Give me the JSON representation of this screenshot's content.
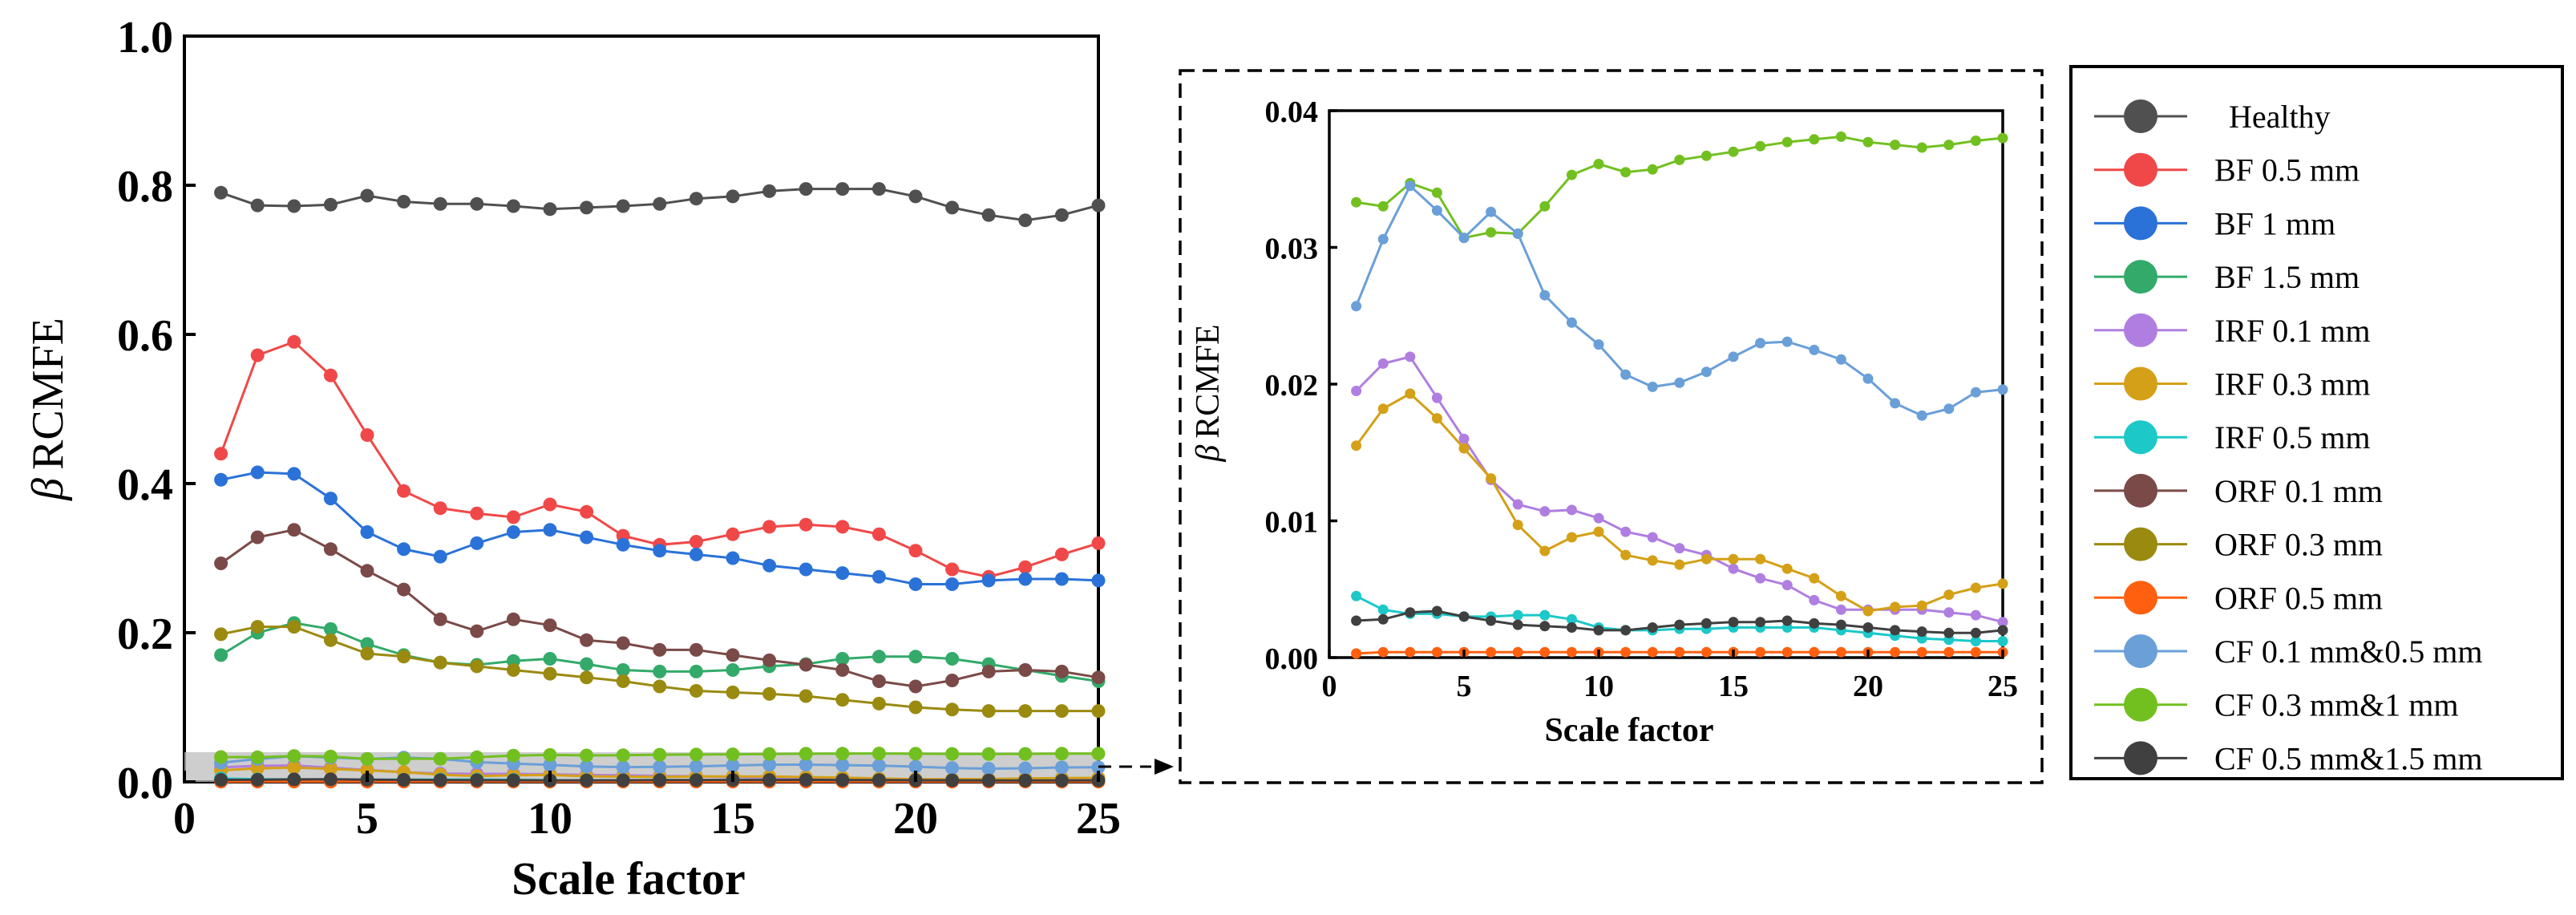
{
  "chart_data": [
    {
      "id": "main",
      "type": "line",
      "title": "",
      "xlabel": "Scale factor",
      "ylabel": "β RCMFE",
      "ylabel_symbol": "β",
      "ylabel_text": "RCMFE",
      "xlim": [
        0,
        25
      ],
      "ylim": [
        0,
        1.0
      ],
      "xticks": [
        "0",
        "5",
        "10",
        "15",
        "20",
        "25"
      ],
      "yticks": [
        "0.0",
        "0.2",
        "0.4",
        "0.6",
        "0.8",
        "1.0"
      ],
      "grid": false,
      "x": [
        1,
        2,
        3,
        4,
        5,
        6,
        7,
        8,
        9,
        10,
        11,
        12,
        13,
        14,
        15,
        16,
        17,
        18,
        19,
        20,
        21,
        22,
        23,
        24,
        25
      ],
      "series": [
        {
          "name": "Healthy",
          "color": "#505050",
          "values": [
            0.79,
            0.773,
            0.772,
            0.774,
            0.786,
            0.778,
            0.775,
            0.775,
            0.772,
            0.768,
            0.77,
            0.772,
            0.775,
            0.782,
            0.785,
            0.792,
            0.795,
            0.795,
            0.795,
            0.785,
            0.77,
            0.76,
            0.753,
            0.76,
            0.773
          ]
        },
        {
          "name": "BF 0.5 mm",
          "color": "#f04848",
          "values": [
            0.44,
            0.572,
            0.59,
            0.545,
            0.465,
            0.39,
            0.367,
            0.36,
            0.355,
            0.372,
            0.362,
            0.33,
            0.318,
            0.322,
            0.332,
            0.342,
            0.345,
            0.342,
            0.332,
            0.31,
            0.285,
            0.275,
            0.288,
            0.305,
            0.32
          ]
        },
        {
          "name": "BF 1 mm",
          "color": "#2a72d8",
          "values": [
            0.405,
            0.415,
            0.413,
            0.38,
            0.335,
            0.312,
            0.302,
            0.32,
            0.335,
            0.338,
            0.328,
            0.318,
            0.31,
            0.305,
            0.3,
            0.29,
            0.285,
            0.28,
            0.275,
            0.265,
            0.265,
            0.27,
            0.272,
            0.272,
            0.27
          ]
        },
        {
          "name": "BF 1.5 mm",
          "color": "#33aa6a",
          "values": [
            0.17,
            0.2,
            0.213,
            0.205,
            0.185,
            0.17,
            0.16,
            0.157,
            0.162,
            0.165,
            0.158,
            0.15,
            0.148,
            0.148,
            0.15,
            0.155,
            0.158,
            0.165,
            0.168,
            0.168,
            0.165,
            0.158,
            0.15,
            0.142,
            0.135
          ]
        },
        {
          "name": "IRF 0.1 mm",
          "color": "#b07ee0",
          "values": [
            0.0195,
            0.0215,
            0.022,
            0.019,
            0.016,
            0.013,
            0.0112,
            0.0107,
            0.0108,
            0.0102,
            0.0092,
            0.0088,
            0.008,
            0.0075,
            0.0065,
            0.0058,
            0.0053,
            0.0042,
            0.0035,
            0.0035,
            0.0035,
            0.0035,
            0.0033,
            0.0031,
            0.0026
          ]
        },
        {
          "name": "IRF 0.3 mm",
          "color": "#d4a017",
          "values": [
            0.0155,
            0.0182,
            0.0193,
            0.0175,
            0.0153,
            0.0131,
            0.0097,
            0.0078,
            0.0088,
            0.0092,
            0.0075,
            0.0071,
            0.0068,
            0.0072,
            0.0072,
            0.0072,
            0.0065,
            0.0058,
            0.0045,
            0.0034,
            0.0037,
            0.0038,
            0.0046,
            0.0051,
            0.0054
          ]
        },
        {
          "name": "IRF 0.5 mm",
          "color": "#1cc8c8",
          "values": [
            0.0045,
            0.0035,
            0.0032,
            0.0032,
            0.003,
            0.003,
            0.0031,
            0.0031,
            0.0028,
            0.0022,
            0.002,
            0.002,
            0.0021,
            0.0021,
            0.0022,
            0.0022,
            0.0022,
            0.0022,
            0.002,
            0.0018,
            0.0016,
            0.0014,
            0.0013,
            0.0012,
            0.0012
          ]
        },
        {
          "name": "ORF 0.1 mm",
          "color": "#7a4a48",
          "values": [
            0.293,
            0.328,
            0.338,
            0.312,
            0.283,
            0.258,
            0.218,
            0.202,
            0.218,
            0.21,
            0.19,
            0.186,
            0.177,
            0.177,
            0.17,
            0.163,
            0.157,
            0.15,
            0.135,
            0.128,
            0.136,
            0.148,
            0.15,
            0.148,
            0.14
          ]
        },
        {
          "name": "ORF 0.3 mm",
          "color": "#9a8a10",
          "values": [
            0.198,
            0.208,
            0.208,
            0.19,
            0.172,
            0.168,
            0.16,
            0.155,
            0.15,
            0.145,
            0.14,
            0.135,
            0.128,
            0.122,
            0.12,
            0.118,
            0.115,
            0.11,
            0.105,
            0.1,
            0.097,
            0.095,
            0.095,
            0.095,
            0.095
          ]
        },
        {
          "name": "ORF 0.5 mm",
          "color": "#ff6010",
          "values": [
            0.0003,
            0.0004,
            0.0004,
            0.0004,
            0.0004,
            0.0004,
            0.0004,
            0.0004,
            0.0004,
            0.0004,
            0.0004,
            0.0004,
            0.0004,
            0.0004,
            0.0004,
            0.0004,
            0.0004,
            0.0004,
            0.0004,
            0.0004,
            0.0004,
            0.0004,
            0.0004,
            0.0004,
            0.0004
          ]
        },
        {
          "name": "CF 0.1 mm&0.5 mm",
          "color": "#6a9fd8",
          "values": [
            0.0257,
            0.0306,
            0.0345,
            0.0327,
            0.0307,
            0.0326,
            0.031,
            0.0265,
            0.0245,
            0.0229,
            0.0207,
            0.0198,
            0.0201,
            0.0209,
            0.022,
            0.023,
            0.0231,
            0.0225,
            0.0218,
            0.0204,
            0.0186,
            0.0177,
            0.0182,
            0.0194,
            0.0196
          ]
        },
        {
          "name": "CF 0.3 mm&1 mm",
          "color": "#72c020",
          "values": [
            0.0333,
            0.033,
            0.0347,
            0.034,
            0.0307,
            0.0311,
            0.031,
            0.033,
            0.0353,
            0.0361,
            0.0355,
            0.0357,
            0.0364,
            0.0367,
            0.037,
            0.0374,
            0.0377,
            0.0379,
            0.0381,
            0.0377,
            0.0375,
            0.0373,
            0.0375,
            0.0378,
            0.038
          ]
        },
        {
          "name": "CF 0.5 mm&1.5 mm",
          "color": "#404040",
          "values": [
            0.0027,
            0.0028,
            0.0033,
            0.0034,
            0.003,
            0.0027,
            0.0024,
            0.0023,
            0.0022,
            0.002,
            0.002,
            0.0022,
            0.0024,
            0.0025,
            0.0026,
            0.0026,
            0.0027,
            0.0025,
            0.0024,
            0.0022,
            0.002,
            0.0019,
            0.0018,
            0.0018,
            0.002
          ]
        }
      ]
    },
    {
      "id": "inset",
      "type": "line",
      "title": "",
      "description": "Zoomed view of shaded region 0–0.04",
      "xlabel": "Scale factor",
      "ylabel": "β RCMFE",
      "ylabel_symbol": "β",
      "ylabel_text": "RCMFE",
      "xlim": [
        0,
        25
      ],
      "ylim": [
        0,
        0.04
      ],
      "xticks": [
        "0",
        "5",
        "10",
        "15",
        "20",
        "25"
      ],
      "yticks": [
        "0.00",
        "0.01",
        "0.02",
        "0.03",
        "0.04"
      ],
      "grid": false,
      "series_names": [
        "CF 0.3 mm&1 mm",
        "CF 0.1 mm&0.5 mm",
        "IRF 0.1 mm",
        "IRF 0.3 mm",
        "IRF 0.5 mm",
        "CF 0.5 mm&1.5 mm",
        "ORF 0.5 mm"
      ]
    }
  ],
  "legend": {
    "placement": "right",
    "entries": [
      "Healthy",
      "BF 0.5 mm",
      "BF 1 mm",
      "BF 1.5 mm",
      "IRF 0.1 mm",
      "IRF 0.3 mm",
      "IRF 0.5 mm",
      "ORF 0.1 mm",
      "ORF 0.3 mm",
      "ORF 0.5 mm",
      "CF 0.1 mm&0.5 mm",
      "CF 0.3 mm&1 mm",
      "CF 0.5 mm&1.5 mm"
    ]
  }
}
